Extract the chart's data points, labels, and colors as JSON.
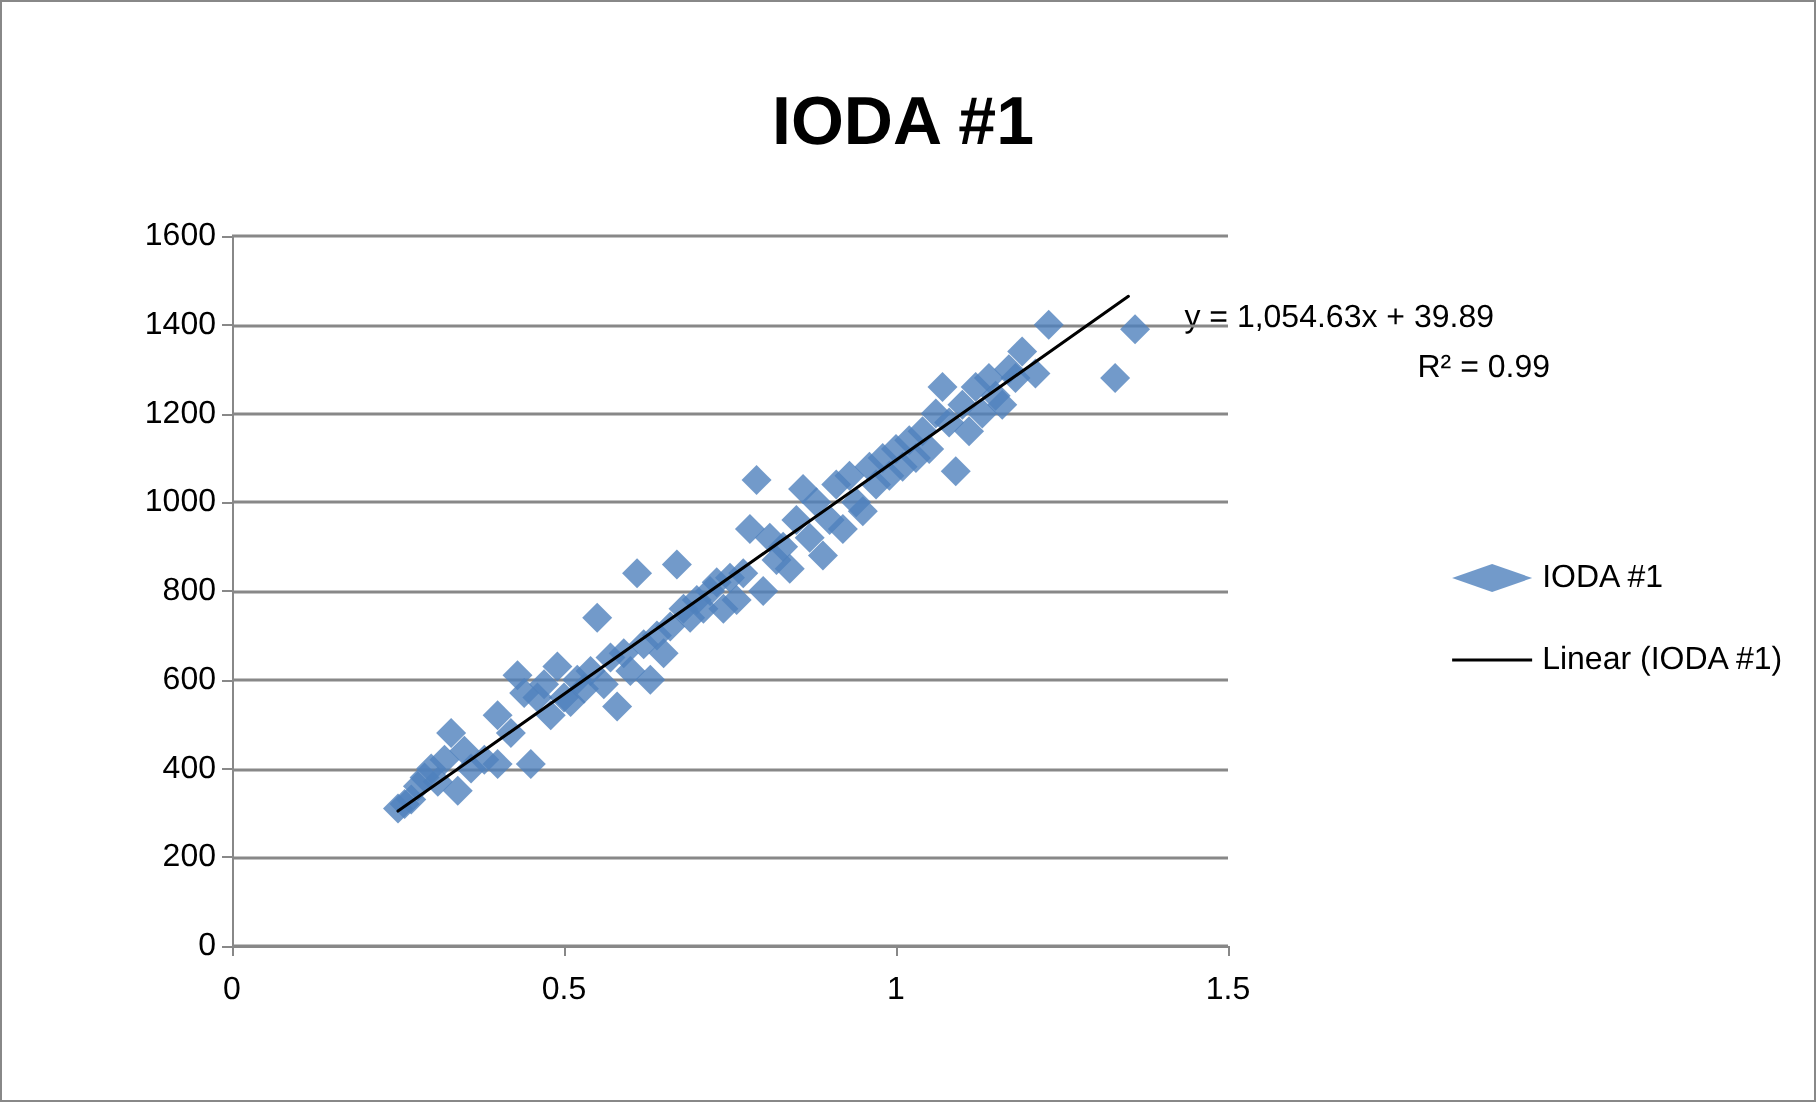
{
  "chart_data": {
    "type": "scatter",
    "title": "IODA #1",
    "xlim": [
      0,
      1.5
    ],
    "xticks": [
      0,
      0.5,
      1,
      1.5
    ],
    "ylim": [
      0,
      1600
    ],
    "yticks": [
      0,
      200,
      400,
      600,
      800,
      1000,
      1200,
      1400,
      1600
    ],
    "grid": "y",
    "legend": "right",
    "annotations": [
      "y = 1,054.63x + 39.89",
      "R² = 0.99"
    ],
    "series": [
      {
        "name": "IODA #1",
        "marker": "diamond",
        "color": "#4f81bd",
        "x": [
          0.25,
          0.26,
          0.27,
          0.28,
          0.29,
          0.3,
          0.31,
          0.32,
          0.33,
          0.34,
          0.35,
          0.36,
          0.38,
          0.4,
          0.4,
          0.42,
          0.43,
          0.44,
          0.45,
          0.46,
          0.47,
          0.48,
          0.49,
          0.5,
          0.51,
          0.52,
          0.53,
          0.54,
          0.55,
          0.56,
          0.57,
          0.58,
          0.59,
          0.6,
          0.61,
          0.62,
          0.63,
          0.64,
          0.65,
          0.66,
          0.67,
          0.68,
          0.69,
          0.7,
          0.71,
          0.72,
          0.73,
          0.74,
          0.75,
          0.76,
          0.77,
          0.78,
          0.79,
          0.8,
          0.81,
          0.82,
          0.83,
          0.84,
          0.85,
          0.86,
          0.87,
          0.88,
          0.89,
          0.9,
          0.91,
          0.92,
          0.93,
          0.94,
          0.95,
          0.96,
          0.97,
          0.98,
          0.99,
          1.0,
          1.01,
          1.02,
          1.03,
          1.04,
          1.05,
          1.06,
          1.07,
          1.08,
          1.09,
          1.1,
          1.11,
          1.12,
          1.13,
          1.14,
          1.15,
          1.16,
          1.17,
          1.18,
          1.19,
          1.21,
          1.23,
          1.33,
          1.36
        ],
        "values": [
          310,
          320,
          330,
          360,
          380,
          400,
          370,
          420,
          480,
          350,
          440,
          400,
          420,
          410,
          520,
          480,
          610,
          570,
          410,
          560,
          590,
          520,
          630,
          560,
          550,
          600,
          580,
          620,
          740,
          590,
          650,
          540,
          660,
          620,
          840,
          680,
          600,
          700,
          660,
          720,
          860,
          760,
          740,
          780,
          760,
          800,
          820,
          760,
          830,
          780,
          840,
          940,
          1050,
          800,
          920,
          870,
          900,
          850,
          960,
          1030,
          920,
          1000,
          880,
          960,
          1040,
          940,
          1060,
          1000,
          980,
          1080,
          1040,
          1100,
          1060,
          1120,
          1080,
          1140,
          1100,
          1160,
          1120,
          1200,
          1260,
          1180,
          1070,
          1220,
          1160,
          1260,
          1200,
          1280,
          1240,
          1220,
          1300,
          1280,
          1340,
          1290,
          1400,
          1280,
          1390
        ]
      },
      {
        "name": "Linear (IODA #1)",
        "type": "line",
        "marker": "none",
        "line_style": "solid",
        "color": "#000000",
        "x": [
          0.25,
          1.35
        ],
        "values": [
          304,
          1464
        ]
      }
    ]
  }
}
